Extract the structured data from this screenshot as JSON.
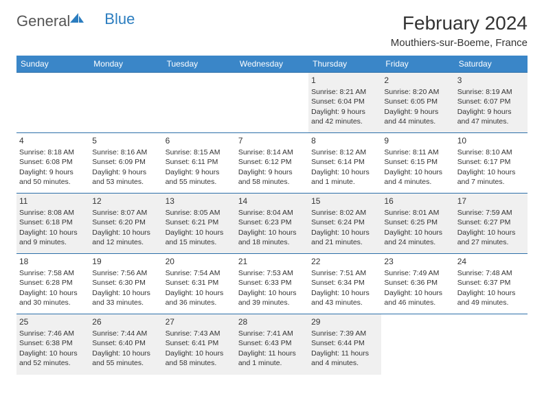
{
  "brand": {
    "general": "General",
    "blue": "Blue"
  },
  "title": "February 2024",
  "location": "Mouthiers-sur-Boeme, France",
  "colors": {
    "header_bg": "#3a86c8",
    "row_divider": "#2b6ea8",
    "alt_row_bg": "#f0f0f0",
    "text": "#333333",
    "brand_blue": "#2b7dbf"
  },
  "typography": {
    "base_family": "Arial",
    "title_fontsize_pt": 21,
    "location_fontsize_pt": 11,
    "weekday_fontsize_pt": 9,
    "daynum_fontsize_pt": 9,
    "cell_fontsize_pt": 8
  },
  "layout": {
    "columns": 7,
    "rows": 5,
    "start_weekday": "Sunday",
    "first_day_column_index": 4
  },
  "weekdays": [
    "Sunday",
    "Monday",
    "Tuesday",
    "Wednesday",
    "Thursday",
    "Friday",
    "Saturday"
  ],
  "days": [
    {
      "n": 1,
      "sunrise": "8:21 AM",
      "sunset": "6:04 PM",
      "daylight": "9 hours and 42 minutes."
    },
    {
      "n": 2,
      "sunrise": "8:20 AM",
      "sunset": "6:05 PM",
      "daylight": "9 hours and 44 minutes."
    },
    {
      "n": 3,
      "sunrise": "8:19 AM",
      "sunset": "6:07 PM",
      "daylight": "9 hours and 47 minutes."
    },
    {
      "n": 4,
      "sunrise": "8:18 AM",
      "sunset": "6:08 PM",
      "daylight": "9 hours and 50 minutes."
    },
    {
      "n": 5,
      "sunrise": "8:16 AM",
      "sunset": "6:09 PM",
      "daylight": "9 hours and 53 minutes."
    },
    {
      "n": 6,
      "sunrise": "8:15 AM",
      "sunset": "6:11 PM",
      "daylight": "9 hours and 55 minutes."
    },
    {
      "n": 7,
      "sunrise": "8:14 AM",
      "sunset": "6:12 PM",
      "daylight": "9 hours and 58 minutes."
    },
    {
      "n": 8,
      "sunrise": "8:12 AM",
      "sunset": "6:14 PM",
      "daylight": "10 hours and 1 minute."
    },
    {
      "n": 9,
      "sunrise": "8:11 AM",
      "sunset": "6:15 PM",
      "daylight": "10 hours and 4 minutes."
    },
    {
      "n": 10,
      "sunrise": "8:10 AM",
      "sunset": "6:17 PM",
      "daylight": "10 hours and 7 minutes."
    },
    {
      "n": 11,
      "sunrise": "8:08 AM",
      "sunset": "6:18 PM",
      "daylight": "10 hours and 9 minutes."
    },
    {
      "n": 12,
      "sunrise": "8:07 AM",
      "sunset": "6:20 PM",
      "daylight": "10 hours and 12 minutes."
    },
    {
      "n": 13,
      "sunrise": "8:05 AM",
      "sunset": "6:21 PM",
      "daylight": "10 hours and 15 minutes."
    },
    {
      "n": 14,
      "sunrise": "8:04 AM",
      "sunset": "6:23 PM",
      "daylight": "10 hours and 18 minutes."
    },
    {
      "n": 15,
      "sunrise": "8:02 AM",
      "sunset": "6:24 PM",
      "daylight": "10 hours and 21 minutes."
    },
    {
      "n": 16,
      "sunrise": "8:01 AM",
      "sunset": "6:25 PM",
      "daylight": "10 hours and 24 minutes."
    },
    {
      "n": 17,
      "sunrise": "7:59 AM",
      "sunset": "6:27 PM",
      "daylight": "10 hours and 27 minutes."
    },
    {
      "n": 18,
      "sunrise": "7:58 AM",
      "sunset": "6:28 PM",
      "daylight": "10 hours and 30 minutes."
    },
    {
      "n": 19,
      "sunrise": "7:56 AM",
      "sunset": "6:30 PM",
      "daylight": "10 hours and 33 minutes."
    },
    {
      "n": 20,
      "sunrise": "7:54 AM",
      "sunset": "6:31 PM",
      "daylight": "10 hours and 36 minutes."
    },
    {
      "n": 21,
      "sunrise": "7:53 AM",
      "sunset": "6:33 PM",
      "daylight": "10 hours and 39 minutes."
    },
    {
      "n": 22,
      "sunrise": "7:51 AM",
      "sunset": "6:34 PM",
      "daylight": "10 hours and 43 minutes."
    },
    {
      "n": 23,
      "sunrise": "7:49 AM",
      "sunset": "6:36 PM",
      "daylight": "10 hours and 46 minutes."
    },
    {
      "n": 24,
      "sunrise": "7:48 AM",
      "sunset": "6:37 PM",
      "daylight": "10 hours and 49 minutes."
    },
    {
      "n": 25,
      "sunrise": "7:46 AM",
      "sunset": "6:38 PM",
      "daylight": "10 hours and 52 minutes."
    },
    {
      "n": 26,
      "sunrise": "7:44 AM",
      "sunset": "6:40 PM",
      "daylight": "10 hours and 55 minutes."
    },
    {
      "n": 27,
      "sunrise": "7:43 AM",
      "sunset": "6:41 PM",
      "daylight": "10 hours and 58 minutes."
    },
    {
      "n": 28,
      "sunrise": "7:41 AM",
      "sunset": "6:43 PM",
      "daylight": "11 hours and 1 minute."
    },
    {
      "n": 29,
      "sunrise": "7:39 AM",
      "sunset": "6:44 PM",
      "daylight": "11 hours and 4 minutes."
    }
  ],
  "labels": {
    "sunrise_prefix": "Sunrise: ",
    "sunset_prefix": "Sunset: ",
    "daylight_prefix": "Daylight: "
  }
}
